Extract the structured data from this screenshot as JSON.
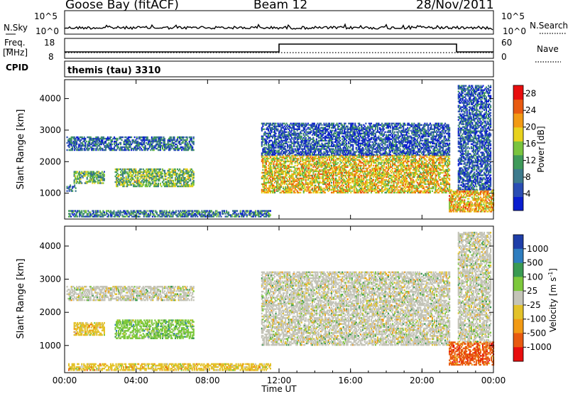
{
  "header": {
    "station": "Goose Bay (fitACF)",
    "beam": "Beam 12",
    "date": "28/Nov/2011"
  },
  "top_panels": {
    "noise": {
      "left_label": "N.Sky",
      "left_ticks": [
        "10^5",
        "10^0"
      ],
      "right_label": "N.Search",
      "right_ticks": [
        "10^5",
        "10^0"
      ]
    },
    "freq": {
      "left_label_1": "Freq.",
      "left_label_2": "[MHz]",
      "left_ticks": [
        "18",
        "8"
      ],
      "right_label": "Nave",
      "right_ticks": [
        "60",
        "0"
      ]
    },
    "cpid": {
      "label": "CPID",
      "value": "themis (tau) 3310"
    }
  },
  "colors": {
    "power_scale": [
      "#0a1ecf",
      "#2a4db3",
      "#3d7a8c",
      "#3f9a5a",
      "#7ac43e",
      "#e8d21e",
      "#f29a14",
      "#e85a10",
      "#e80e0e"
    ],
    "velocity_scale": [
      "#1e3ea8",
      "#2e7dbf",
      "#3a9a52",
      "#7dc83c",
      "#c4c4b8",
      "#e3c22a",
      "#f29a14",
      "#e85a10",
      "#e80e0e"
    ]
  },
  "chart_data": [
    {
      "type": "heatmap",
      "title": "Power",
      "xlabel": "Time UT",
      "ylabel": "Slant Range [km]",
      "x_ticks": [
        "00:00",
        "04:00",
        "08:00",
        "12:00",
        "16:00",
        "20:00",
        "00:00"
      ],
      "xlim_hours": [
        0,
        24
      ],
      "ylim_km": [
        180,
        4600
      ],
      "y_ticks": [
        1000,
        2000,
        3000,
        4000
      ],
      "colorbar_label": "Power [dB]",
      "colorbar_ticks": [
        4,
        8,
        12,
        16,
        20,
        24,
        28
      ],
      "colorbar_range": [
        0,
        30
      ],
      "echo_regions": [
        {
          "t0": 0.1,
          "t1": 7.2,
          "r0": 2350,
          "r1": 2800,
          "level": 0.2
        },
        {
          "t0": 0.1,
          "t1": 0.6,
          "r0": 1050,
          "r1": 1250,
          "level": 0.2
        },
        {
          "t0": 0.5,
          "t1": 2.2,
          "r0": 1300,
          "r1": 1700,
          "level": 0.4
        },
        {
          "t0": 2.8,
          "t1": 7.2,
          "r0": 1200,
          "r1": 1750,
          "level": 0.45
        },
        {
          "t0": 0.2,
          "t1": 11.5,
          "r0": 240,
          "r1": 450,
          "level": 0.25
        },
        {
          "t0": 11.0,
          "t1": 21.5,
          "r0": 1000,
          "r1": 2200,
          "level": 0.65
        },
        {
          "t0": 11.0,
          "t1": 21.5,
          "r0": 2200,
          "r1": 3200,
          "level": 0.15
        },
        {
          "t0": 21.5,
          "t1": 24.0,
          "r0": 400,
          "r1": 1100,
          "level": 0.7
        },
        {
          "t0": 22.0,
          "t1": 23.8,
          "r0": 1100,
          "r1": 4400,
          "level": 0.15
        }
      ]
    },
    {
      "type": "heatmap",
      "title": "Velocity",
      "xlabel": "Time UT",
      "ylabel": "Slant Range [km]",
      "x_ticks": [
        "00:00",
        "04:00",
        "08:00",
        "12:00",
        "16:00",
        "20:00",
        "00:00"
      ],
      "xlim_hours": [
        0,
        24
      ],
      "ylim_km": [
        180,
        4600
      ],
      "y_ticks": [
        1000,
        2000,
        3000,
        4000
      ],
      "colorbar_label": "Velocity [m s",
      "colorbar_unit_exp": "-1",
      "colorbar_unit_close": "]",
      "colorbar_ticks": [
        "1000",
        "500",
        "100",
        "25",
        "-25",
        "-100",
        "-500",
        "-1000"
      ],
      "echo_regions": [
        {
          "t0": 0.1,
          "t1": 7.2,
          "r0": 2350,
          "r1": 2800,
          "class": 4
        },
        {
          "t0": 0.5,
          "t1": 2.2,
          "r0": 1300,
          "r1": 1700,
          "class": 5
        },
        {
          "t0": 2.8,
          "t1": 7.2,
          "r0": 1200,
          "r1": 1750,
          "class": 3
        },
        {
          "t0": 0.2,
          "t1": 11.5,
          "r0": 240,
          "r1": 450,
          "class": 5
        },
        {
          "t0": 11.0,
          "t1": 21.5,
          "r0": 1000,
          "r1": 2200,
          "class": 4
        },
        {
          "t0": 11.0,
          "t1": 21.5,
          "r0": 2200,
          "r1": 3200,
          "class": 4
        },
        {
          "t0": 21.5,
          "t1": 24.0,
          "r0": 400,
          "r1": 1100,
          "class": 7
        },
        {
          "t0": 22.0,
          "t1": 23.8,
          "r0": 1100,
          "r1": 4400,
          "class": 4
        }
      ]
    }
  ]
}
